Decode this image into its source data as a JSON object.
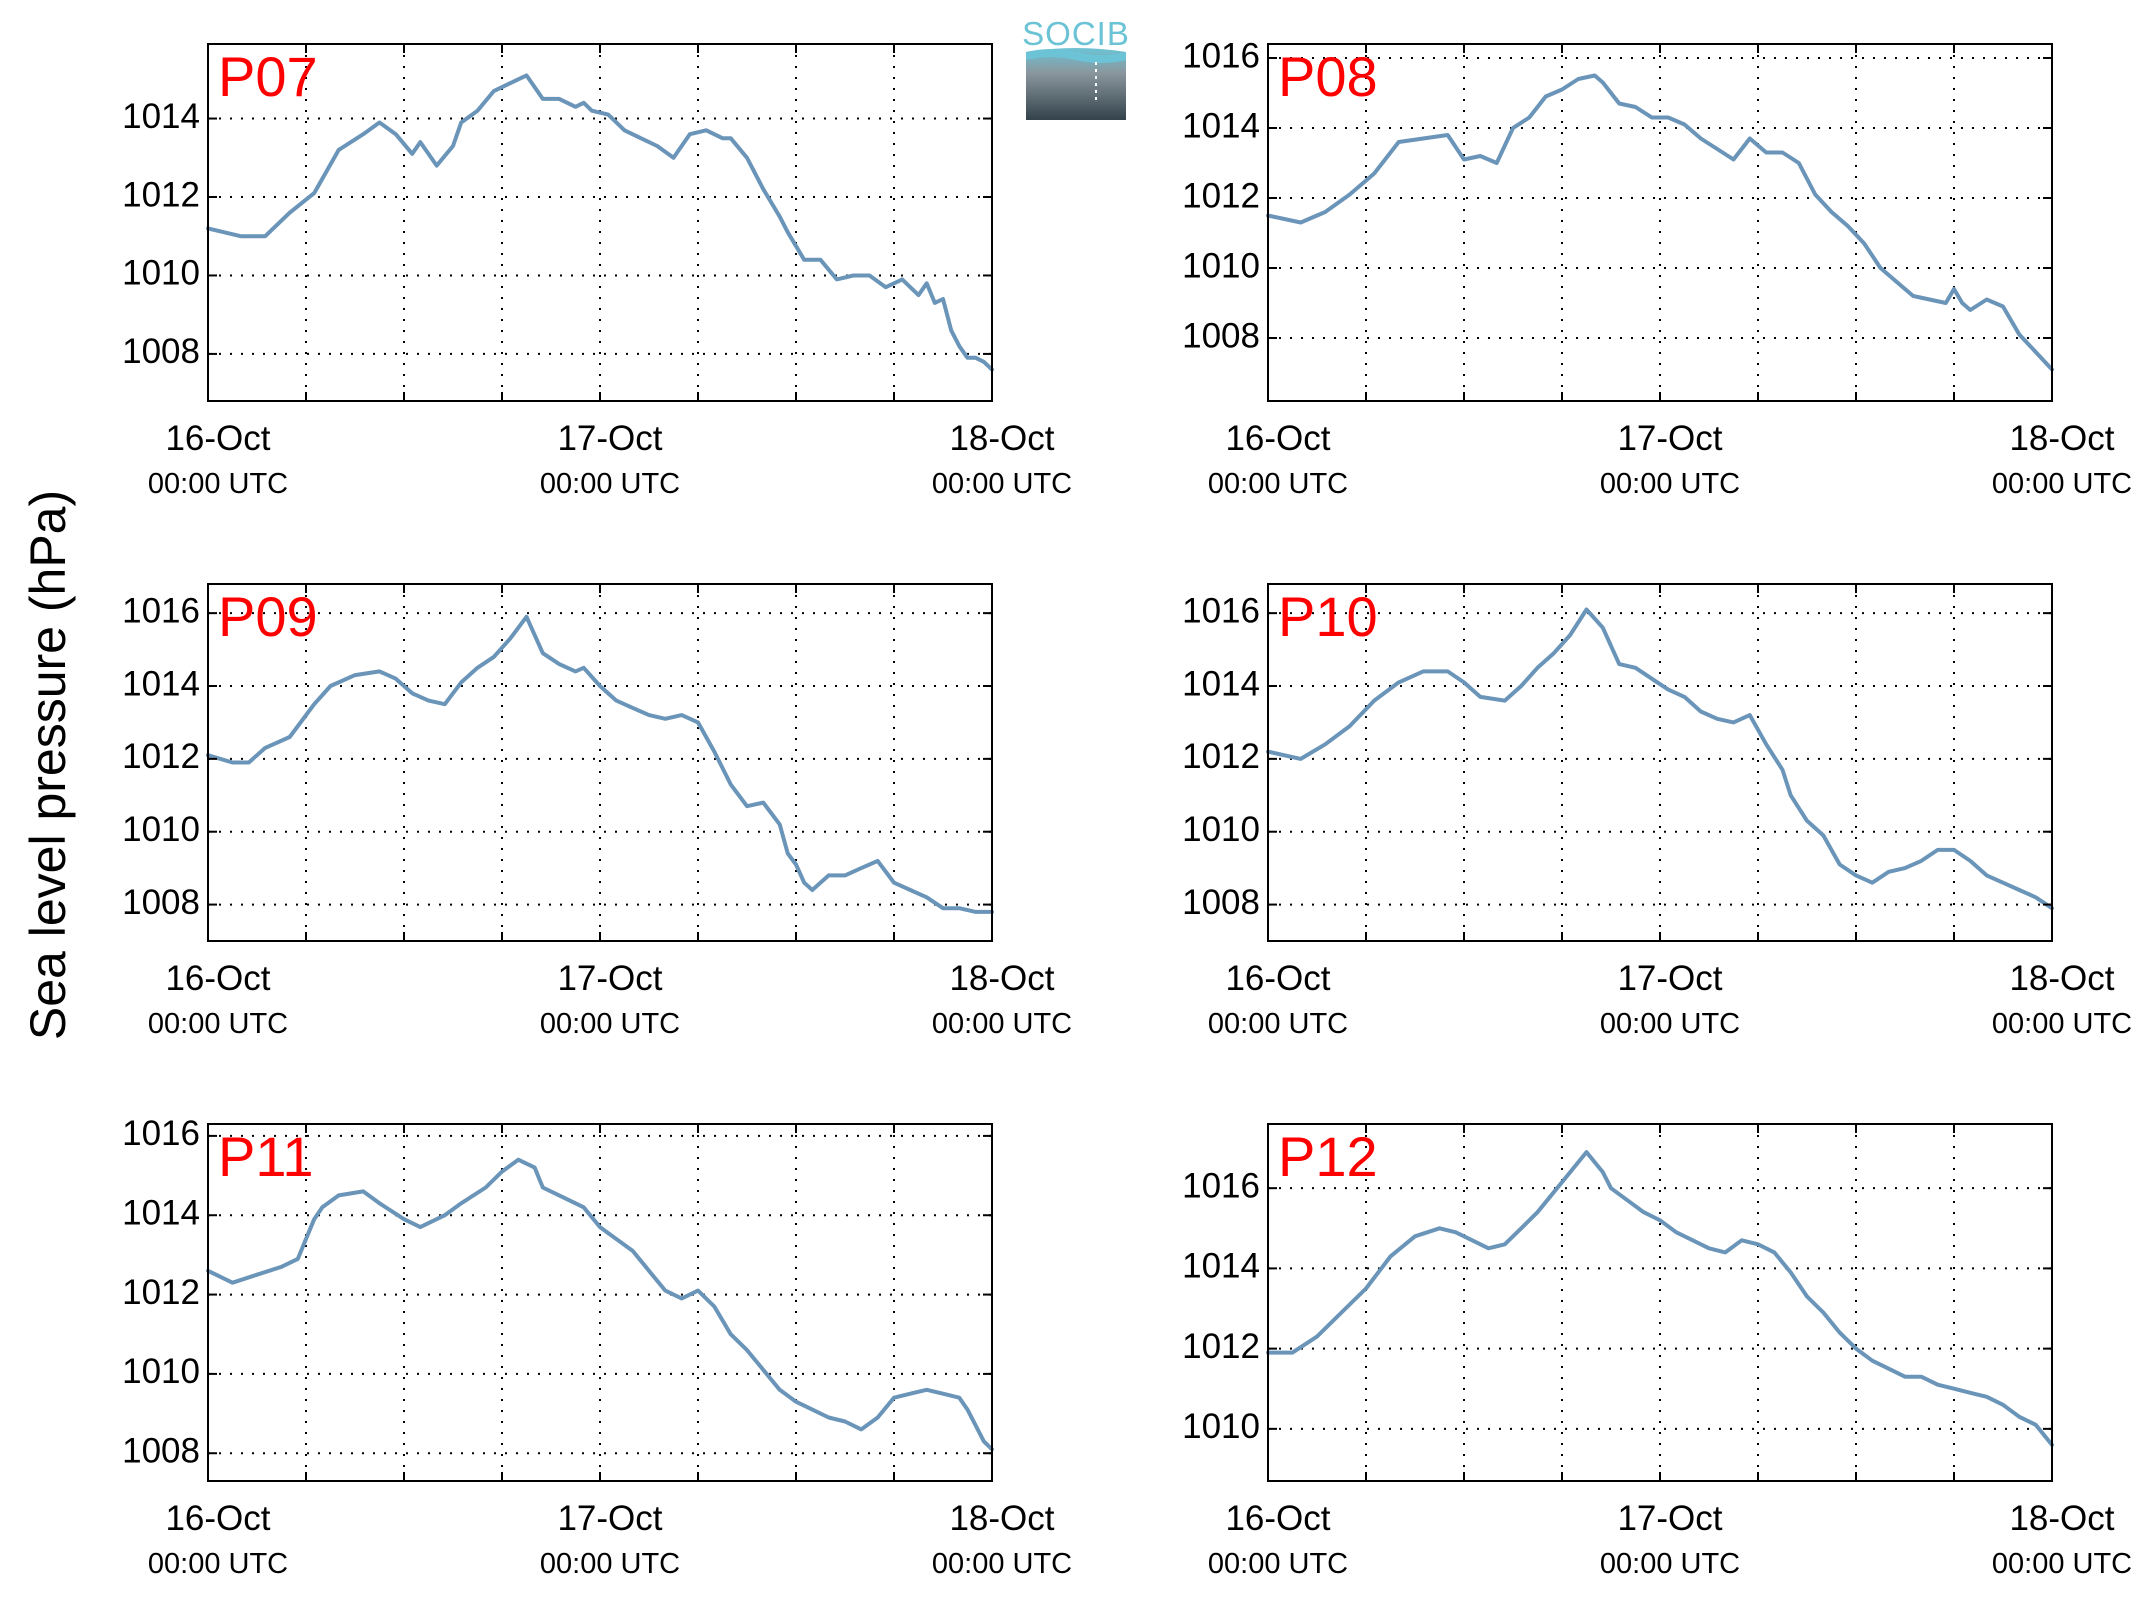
{
  "figure": {
    "ylabel": "Sea level pressure (hPa)",
    "logo_text": "SOCIB",
    "colors": {
      "line": "#6a95b9",
      "panel_label": "#ff0000",
      "logo_top": "#6cc3d5",
      "logo_dark": "#33424b"
    }
  },
  "chart_data": [
    {
      "type": "line",
      "name": "P07",
      "x_ticks": [
        {
          "hour": 0,
          "date": "16-Oct",
          "time": "00:00 UTC"
        },
        {
          "hour": 24,
          "date": "17-Oct",
          "time": "00:00 UTC"
        },
        {
          "hour": 48,
          "date": "18-Oct",
          "time": "00:00 UTC"
        }
      ],
      "xlim": [
        0,
        48
      ],
      "ylim": [
        1006.8,
        1015.9
      ],
      "yticks": [
        1008,
        1010,
        1012,
        1014
      ],
      "grid": true,
      "series": [
        {
          "x": [
            0,
            2,
            3.5,
            5,
            6.5,
            8,
            9.5,
            10.5,
            11.5,
            12.5,
            13,
            14,
            15,
            15.5,
            16.5,
            17.5,
            18.5,
            19.5,
            20.5,
            21.5,
            22.5,
            23,
            23.5,
            24.5,
            25.5,
            26.5,
            27.5,
            28.5,
            29.5,
            30.5,
            31.5,
            32,
            33,
            34,
            35,
            35.5,
            36.5,
            37.5,
            38.5,
            39.5,
            40.5,
            41.5,
            42.5,
            43.5,
            44,
            44.5,
            45,
            45.5,
            46,
            46.5,
            47,
            47.5,
            48
          ],
          "y": [
            1011.2,
            1011,
            1011,
            1011.6,
            1012.1,
            1013.2,
            1013.6,
            1013.9,
            1013.6,
            1013.1,
            1013.4,
            1012.8,
            1013.3,
            1013.9,
            1014.2,
            1014.7,
            1014.9,
            1015.1,
            1014.5,
            1014.5,
            1014.3,
            1014.4,
            1014.2,
            1014.1,
            1013.7,
            1013.5,
            1013.3,
            1013,
            1013.6,
            1013.7,
            1013.5,
            1013.5,
            1013,
            1012.2,
            1011.5,
            1011.1,
            1010.4,
            1010.4,
            1009.9,
            1010,
            1010,
            1009.7,
            1009.9,
            1009.5,
            1009.8,
            1009.3,
            1009.4,
            1008.6,
            1008.2,
            1007.9,
            1007.9,
            1007.8,
            1007.6
          ]
        }
      ]
    },
    {
      "type": "line",
      "name": "P08",
      "x_ticks": [
        {
          "hour": 0,
          "date": "16-Oct",
          "time": "00:00 UTC"
        },
        {
          "hour": 24,
          "date": "17-Oct",
          "time": "00:00 UTC"
        },
        {
          "hour": 48,
          "date": "18-Oct",
          "time": "00:00 UTC"
        }
      ],
      "xlim": [
        0,
        48
      ],
      "ylim": [
        1006.2,
        1016.4
      ],
      "yticks": [
        1008,
        1010,
        1012,
        1014,
        1016
      ],
      "grid": true,
      "series": [
        {
          "x": [
            0,
            2,
            3.5,
            5,
            6.5,
            8,
            9.5,
            11,
            12,
            13,
            14,
            15,
            16,
            17,
            18,
            19,
            20,
            20.5,
            21.5,
            22.5,
            23.5,
            24.5,
            25.5,
            26.5,
            27.5,
            28.5,
            29.5,
            30.5,
            31.5,
            32.5,
            33.5,
            34.5,
            35.5,
            36.5,
            37.5,
            38.5,
            39.5,
            40.5,
            41.5,
            42,
            42.5,
            43,
            44,
            45,
            46,
            47,
            48
          ],
          "y": [
            1011.5,
            1011.3,
            1011.6,
            1012.1,
            1012.7,
            1013.6,
            1013.7,
            1013.8,
            1013.1,
            1013.2,
            1013,
            1014,
            1014.3,
            1014.9,
            1015.1,
            1015.4,
            1015.5,
            1015.3,
            1014.7,
            1014.6,
            1014.3,
            1014.3,
            1014.1,
            1013.7,
            1013.4,
            1013.1,
            1013.7,
            1013.3,
            1013.3,
            1013,
            1012.1,
            1011.6,
            1011.2,
            1010.7,
            1010,
            1009.6,
            1009.2,
            1009.1,
            1009,
            1009.4,
            1009,
            1008.8,
            1009.1,
            1008.9,
            1008.1,
            1007.6,
            1007.1
          ]
        }
      ]
    },
    {
      "type": "line",
      "name": "P09",
      "x_ticks": [
        {
          "hour": 0,
          "date": "16-Oct",
          "time": "00:00 UTC"
        },
        {
          "hour": 24,
          "date": "17-Oct",
          "time": "00:00 UTC"
        },
        {
          "hour": 48,
          "date": "18-Oct",
          "time": "00:00 UTC"
        }
      ],
      "xlim": [
        0,
        48
      ],
      "ylim": [
        1007,
        1016.8
      ],
      "yticks": [
        1008,
        1010,
        1012,
        1014,
        1016
      ],
      "grid": true,
      "series": [
        {
          "x": [
            0,
            1.5,
            2.5,
            3.5,
            5,
            6.5,
            7.5,
            9,
            10.5,
            11.5,
            12.5,
            13.5,
            14.5,
            15.5,
            16.5,
            17.5,
            18.5,
            19.5,
            20.5,
            21.5,
            22.5,
            23,
            24,
            25,
            26,
            27,
            28,
            29,
            30,
            31,
            32,
            33,
            34,
            35,
            35.5,
            36,
            36.5,
            37,
            38,
            39,
            40,
            41,
            42,
            43,
            44,
            45,
            46,
            47,
            48
          ],
          "y": [
            1012.1,
            1011.9,
            1011.9,
            1012.3,
            1012.6,
            1013.5,
            1014,
            1014.3,
            1014.4,
            1014.2,
            1013.8,
            1013.6,
            1013.5,
            1014.1,
            1014.5,
            1014.8,
            1015.3,
            1015.9,
            1014.9,
            1014.6,
            1014.4,
            1014.5,
            1014,
            1013.6,
            1013.4,
            1013.2,
            1013.1,
            1013.2,
            1013,
            1012.2,
            1011.3,
            1010.7,
            1010.8,
            1010.2,
            1009.4,
            1009.1,
            1008.6,
            1008.4,
            1008.8,
            1008.8,
            1009,
            1009.2,
            1008.6,
            1008.4,
            1008.2,
            1007.9,
            1007.9,
            1007.8,
            1007.8
          ]
        }
      ]
    },
    {
      "type": "line",
      "name": "P10",
      "x_ticks": [
        {
          "hour": 0,
          "date": "16-Oct",
          "time": "00:00 UTC"
        },
        {
          "hour": 24,
          "date": "17-Oct",
          "time": "00:00 UTC"
        },
        {
          "hour": 48,
          "date": "18-Oct",
          "time": "00:00 UTC"
        }
      ],
      "xlim": [
        0,
        48
      ],
      "ylim": [
        1007,
        1016.8
      ],
      "yticks": [
        1008,
        1010,
        1012,
        1014,
        1016
      ],
      "grid": true,
      "series": [
        {
          "x": [
            0,
            2,
            3.5,
            5,
            6.5,
            8,
            9.5,
            11,
            12,
            13,
            14.5,
            15.5,
            16.5,
            17.5,
            18.5,
            19.5,
            20.5,
            21.5,
            22.5,
            23.5,
            24.5,
            25.5,
            26.5,
            27.5,
            28.5,
            29.5,
            30.5,
            31.5,
            32,
            33,
            34,
            35,
            36,
            37,
            38,
            39,
            40,
            41,
            42,
            43,
            44,
            45,
            46,
            47,
            48
          ],
          "y": [
            1012.2,
            1012,
            1012.4,
            1012.9,
            1013.6,
            1014.1,
            1014.4,
            1014.4,
            1014.1,
            1013.7,
            1013.6,
            1014,
            1014.5,
            1014.9,
            1015.4,
            1016.1,
            1015.6,
            1014.6,
            1014.5,
            1014.2,
            1013.9,
            1013.7,
            1013.3,
            1013.1,
            1013,
            1013.2,
            1012.4,
            1011.7,
            1011,
            1010.3,
            1009.9,
            1009.1,
            1008.8,
            1008.6,
            1008.9,
            1009,
            1009.2,
            1009.5,
            1009.5,
            1009.2,
            1008.8,
            1008.6,
            1008.4,
            1008.2,
            1007.9
          ]
        }
      ]
    },
    {
      "type": "line",
      "name": "P11",
      "x_ticks": [
        {
          "hour": 0,
          "date": "16-Oct",
          "time": "00:00 UTC"
        },
        {
          "hour": 24,
          "date": "17-Oct",
          "time": "00:00 UTC"
        },
        {
          "hour": 48,
          "date": "18-Oct",
          "time": "00:00 UTC"
        }
      ],
      "xlim": [
        0,
        48
      ],
      "ylim": [
        1007.3,
        1016.3
      ],
      "yticks": [
        1008,
        1010,
        1012,
        1014,
        1016
      ],
      "grid": true,
      "series": [
        {
          "x": [
            0,
            1.5,
            3,
            4.5,
            5.5,
            6.5,
            7,
            8,
            9.5,
            10.5,
            12,
            13,
            14.5,
            15.5,
            17,
            18,
            19,
            20,
            20.5,
            21.5,
            22.5,
            23,
            24,
            25,
            26,
            27,
            28,
            29,
            30,
            31,
            32,
            33,
            34,
            35,
            36,
            37,
            38,
            39,
            40,
            41,
            42,
            43,
            44,
            45,
            46,
            46.5,
            47,
            47.5,
            48
          ],
          "y": [
            1012.6,
            1012.3,
            1012.5,
            1012.7,
            1012.9,
            1013.9,
            1014.2,
            1014.5,
            1014.6,
            1014.3,
            1013.9,
            1013.7,
            1014,
            1014.3,
            1014.7,
            1015.1,
            1015.4,
            1015.2,
            1014.7,
            1014.5,
            1014.3,
            1014.2,
            1013.7,
            1013.4,
            1013.1,
            1012.6,
            1012.1,
            1011.9,
            1012.1,
            1011.7,
            1011,
            1010.6,
            1010.1,
            1009.6,
            1009.3,
            1009.1,
            1008.9,
            1008.8,
            1008.6,
            1008.9,
            1009.4,
            1009.5,
            1009.6,
            1009.5,
            1009.4,
            1009.1,
            1008.7,
            1008.3,
            1008.1
          ]
        }
      ]
    },
    {
      "type": "line",
      "name": "P12",
      "x_ticks": [
        {
          "hour": 0,
          "date": "16-Oct",
          "time": "00:00 UTC"
        },
        {
          "hour": 24,
          "date": "17-Oct",
          "time": "00:00 UTC"
        },
        {
          "hour": 48,
          "date": "18-Oct",
          "time": "00:00 UTC"
        }
      ],
      "xlim": [
        0,
        48
      ],
      "ylim": [
        1008.7,
        1017.6
      ],
      "yticks": [
        1010,
        1012,
        1014,
        1016
      ],
      "grid": true,
      "series": [
        {
          "x": [
            0,
            1.5,
            3,
            4.5,
            6,
            7.5,
            9,
            10.5,
            11.5,
            12.5,
            13.5,
            14.5,
            15.5,
            16.5,
            17.5,
            18.5,
            19.5,
            20.5,
            21,
            22,
            23,
            24,
            25,
            26,
            27,
            28,
            29,
            30,
            31,
            32,
            33,
            34,
            35,
            36,
            37,
            38,
            39,
            40,
            41,
            42,
            43,
            44,
            45,
            46,
            47,
            48
          ],
          "y": [
            1011.9,
            1011.9,
            1012.3,
            1012.9,
            1013.5,
            1014.3,
            1014.8,
            1015,
            1014.9,
            1014.7,
            1014.5,
            1014.6,
            1015,
            1015.4,
            1015.9,
            1016.4,
            1016.9,
            1016.4,
            1016,
            1015.7,
            1015.4,
            1015.2,
            1014.9,
            1014.7,
            1014.5,
            1014.4,
            1014.7,
            1014.6,
            1014.4,
            1013.9,
            1013.3,
            1012.9,
            1012.4,
            1012,
            1011.7,
            1011.5,
            1011.3,
            1011.3,
            1011.1,
            1011,
            1010.9,
            1010.8,
            1010.6,
            1010.3,
            1010.1,
            1009.6
          ]
        }
      ]
    }
  ]
}
